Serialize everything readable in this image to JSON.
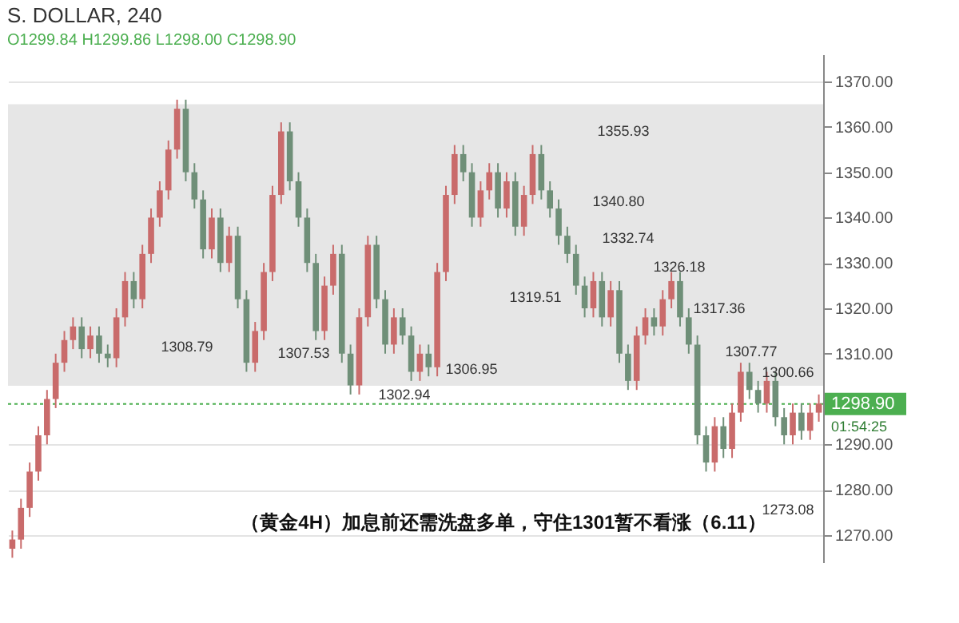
{
  "chart_data": {
    "type": "candlestick",
    "title": "S. DOLLAR, 240",
    "subtitle": "O1299.84  H1299.86  L1298.00  C1298.90",
    "categories": [
      null,
      null,
      null,
      null,
      null,
      null,
      null,
      null,
      null,
      null,
      null,
      null,
      null,
      null,
      null,
      null,
      null,
      null,
      null,
      null,
      null,
      null,
      null,
      null,
      null,
      null,
      null,
      null,
      null,
      null,
      null,
      null,
      null,
      null,
      null,
      null,
      null,
      null,
      null,
      null,
      null,
      null,
      null,
      null,
      null,
      null,
      null,
      null,
      null,
      null,
      null,
      null,
      null,
      null,
      null,
      null,
      null,
      null,
      null,
      null,
      null,
      null,
      null,
      null,
      null,
      null,
      null,
      null,
      null,
      null,
      null,
      null,
      null,
      null,
      null,
      null,
      null,
      null,
      null,
      null,
      null,
      null,
      null,
      null,
      null,
      null,
      null,
      null,
      null,
      null,
      null,
      null,
      null,
      null
    ],
    "ohlc": [
      [
        1267,
        1271,
        1265,
        1269
      ],
      [
        1269,
        1278,
        1267,
        1276
      ],
      [
        1276,
        1286,
        1274,
        1284
      ],
      [
        1284,
        1294,
        1282,
        1292
      ],
      [
        1292,
        1302,
        1290,
        1300
      ],
      [
        1300,
        1310,
        1298,
        1308
      ],
      [
        1308,
        1315,
        1306,
        1313
      ],
      [
        1313,
        1318,
        1311,
        1316
      ],
      [
        1316,
        1318,
        1309,
        1311
      ],
      [
        1311,
        1316,
        1309,
        1314
      ],
      [
        1314,
        1316,
        1308,
        1310
      ],
      [
        1310,
        1312,
        1307,
        1309
      ],
      [
        1309,
        1320,
        1307,
        1318
      ],
      [
        1318,
        1328,
        1316,
        1326
      ],
      [
        1326,
        1328,
        1320,
        1322
      ],
      [
        1322,
        1334,
        1320,
        1332
      ],
      [
        1332,
        1342,
        1330,
        1340
      ],
      [
        1340,
        1348,
        1338,
        1346
      ],
      [
        1346,
        1357,
        1344,
        1355
      ],
      [
        1355,
        1366,
        1353,
        1364
      ],
      [
        1364,
        1366,
        1348,
        1350
      ],
      [
        1350,
        1352,
        1342,
        1344
      ],
      [
        1344,
        1346,
        1331,
        1333
      ],
      [
        1333,
        1342,
        1331,
        1340
      ],
      [
        1340,
        1342,
        1328,
        1330
      ],
      [
        1330,
        1338,
        1328,
        1336
      ],
      [
        1336,
        1338,
        1320,
        1322
      ],
      [
        1322,
        1324,
        1306,
        1308
      ],
      [
        1308,
        1317,
        1306,
        1315
      ],
      [
        1315,
        1330,
        1313,
        1328
      ],
      [
        1328,
        1347,
        1326,
        1345
      ],
      [
        1345,
        1361,
        1343,
        1359
      ],
      [
        1359,
        1361,
        1346,
        1348
      ],
      [
        1348,
        1350,
        1338,
        1340
      ],
      [
        1340,
        1342,
        1328,
        1330
      ],
      [
        1330,
        1332,
        1313,
        1315
      ],
      [
        1315,
        1327,
        1313,
        1325
      ],
      [
        1325,
        1334,
        1323,
        1332
      ],
      [
        1332,
        1334,
        1308,
        1310
      ],
      [
        1310,
        1312,
        1301,
        1303
      ],
      [
        1303,
        1320,
        1301,
        1318
      ],
      [
        1318,
        1336,
        1316,
        1334
      ],
      [
        1334,
        1336,
        1320,
        1322
      ],
      [
        1322,
        1324,
        1310,
        1312
      ],
      [
        1312,
        1320,
        1310,
        1318
      ],
      [
        1318,
        1320,
        1312,
        1314
      ],
      [
        1314,
        1316,
        1304,
        1306
      ],
      [
        1306,
        1312,
        1304,
        1310
      ],
      [
        1310,
        1312,
        1305,
        1307
      ],
      [
        1307,
        1330,
        1305,
        1328
      ],
      [
        1328,
        1347,
        1326,
        1345
      ],
      [
        1345,
        1356,
        1343,
        1354
      ],
      [
        1354,
        1356,
        1348,
        1350
      ],
      [
        1350,
        1352,
        1338,
        1340
      ],
      [
        1340,
        1348,
        1338,
        1346
      ],
      [
        1346,
        1352,
        1344,
        1350
      ],
      [
        1350,
        1352,
        1340,
        1342
      ],
      [
        1342,
        1350,
        1340,
        1348
      ],
      [
        1348,
        1350,
        1336,
        1338
      ],
      [
        1338,
        1347,
        1336,
        1345
      ],
      [
        1345,
        1356,
        1343,
        1354
      ],
      [
        1354,
        1356,
        1344,
        1346
      ],
      [
        1346,
        1348,
        1340,
        1342
      ],
      [
        1342,
        1344,
        1334,
        1336
      ],
      [
        1336,
        1338,
        1330,
        1332
      ],
      [
        1332,
        1334,
        1323,
        1325
      ],
      [
        1325,
        1327,
        1318,
        1320
      ],
      [
        1320,
        1328,
        1318,
        1326
      ],
      [
        1326,
        1328,
        1316,
        1318
      ],
      [
        1318,
        1326,
        1316,
        1324
      ],
      [
        1324,
        1326,
        1308,
        1310
      ],
      [
        1310,
        1312,
        1302,
        1304
      ],
      [
        1304,
        1316,
        1302,
        1314
      ],
      [
        1314,
        1320,
        1312,
        1318
      ],
      [
        1318,
        1320,
        1314,
        1316
      ],
      [
        1316,
        1324,
        1314,
        1322
      ],
      [
        1322,
        1328,
        1320,
        1326
      ],
      [
        1326,
        1328,
        1316,
        1318
      ],
      [
        1318,
        1320,
        1310,
        1312
      ],
      [
        1312,
        1314,
        1290,
        1292
      ],
      [
        1292,
        1294,
        1284,
        1286
      ],
      [
        1286,
        1296,
        1284,
        1294
      ],
      [
        1294,
        1296,
        1287,
        1289
      ],
      [
        1289,
        1299,
        1287,
        1297
      ],
      [
        1297,
        1308,
        1295,
        1306
      ],
      [
        1306,
        1308,
        1300,
        1302
      ],
      [
        1302,
        1304,
        1297,
        1299
      ],
      [
        1299,
        1306,
        1297,
        1304
      ],
      [
        1304,
        1306,
        1294,
        1296
      ],
      [
        1296,
        1298,
        1290,
        1292
      ],
      [
        1292,
        1299,
        1290,
        1297
      ],
      [
        1297,
        1299,
        1291,
        1293
      ],
      [
        1293,
        1299,
        1291,
        1297
      ],
      [
        1297,
        1301,
        1295,
        1299
      ]
    ],
    "ylim": [
      1264,
      1376
    ],
    "yticks": [
      {
        "value": 1270,
        "label": "1270.00"
      },
      {
        "value": 1280,
        "label": "1280.00"
      },
      {
        "value": 1290,
        "label": "1290.00"
      },
      {
        "value": 1310,
        "label": "1310.00"
      },
      {
        "value": 1320,
        "label": "1320.00"
      },
      {
        "value": 1330,
        "label": "1330.00"
      },
      {
        "value": 1340,
        "label": "1340.00"
      },
      {
        "value": 1350,
        "label": "1350.00"
      },
      {
        "value": 1360,
        "label": "1360.00"
      },
      {
        "value": 1370,
        "label": "1370.00"
      }
    ],
    "grid": "y",
    "tick_labels": "y",
    "bands": [
      {
        "axis": "y",
        "from": 1302.94,
        "to": 1365,
        "color": "#e6e6e6"
      }
    ],
    "ref_lines": [
      {
        "axis": "y",
        "value": 1298.9,
        "label": "1298.90",
        "color": "#4caf50",
        "line_style": "dotted"
      }
    ],
    "annotations": [
      "1308.79",
      "1307.53",
      "1302.94",
      "1306.95",
      "1319.51",
      "1355.93",
      "1340.80",
      "1332.74",
      "1326.18",
      "1317.36",
      "1307.77",
      "1300.66",
      "1273.08",
      "01:54:25",
      "（黄金4H）加息前还需洗盘多单，守住1301暂不看涨（6.11）"
    ]
  }
}
